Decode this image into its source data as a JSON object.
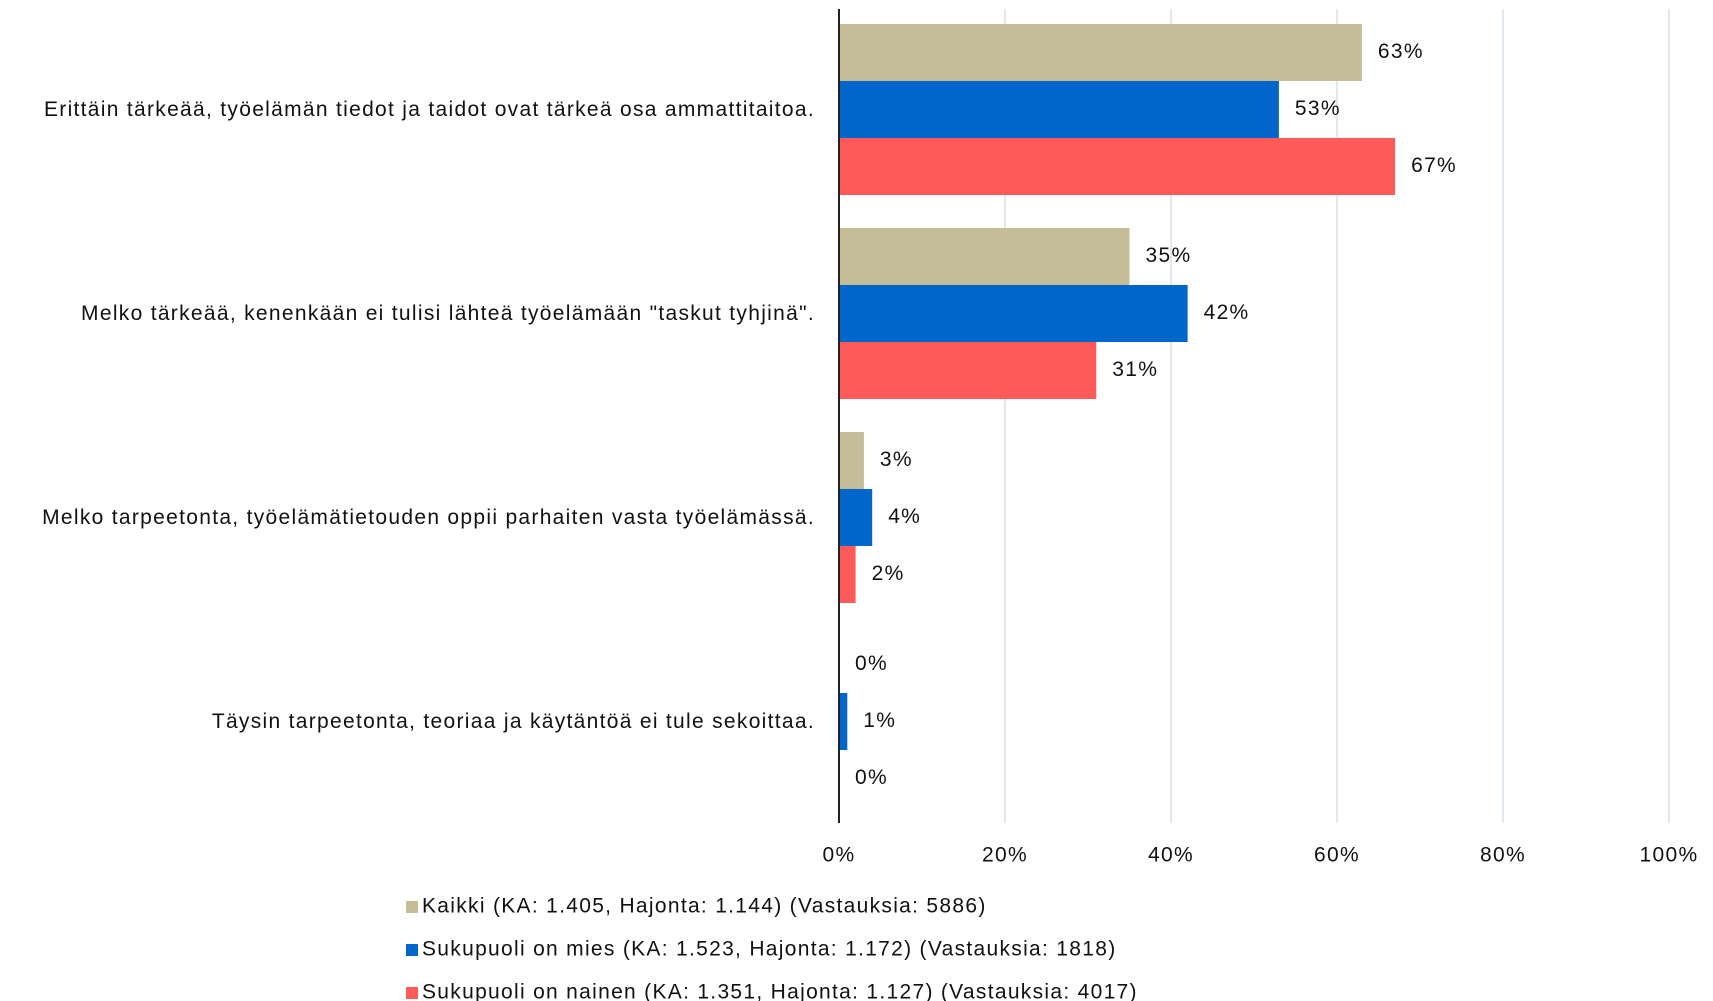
{
  "chart_data": {
    "type": "hbar",
    "categories": [
      "Erittäin tärkeää, työelämän tiedot ja taidot ovat tärkeä osa ammattitaitoa.",
      "Melko tärkeää, kenenkään ei tulisi lähteä työelämään \"taskut tyhjinä\".",
      "Melko tarpeetonta, työelämätietouden oppii parhaiten vasta työelämässä.",
      "Täysin tarpeetonta, teoriaa ja käytäntöä ei tule sekoittaa."
    ],
    "series": [
      {
        "name": "Kaikki (KA: 1.405, Hajonta: 1.144) (Vastauksia: 5886)",
        "color": "#c4bd97",
        "values": [
          63,
          35,
          3,
          0
        ],
        "value_labels": [
          "63%",
          "35%",
          "3%",
          "0%"
        ]
      },
      {
        "name": "Sukupuoli on mies (KA: 1.523, Hajonta: 1.172) (Vastauksia: 1818)",
        "color": "#0066cc",
        "values": [
          53,
          42,
          4,
          1
        ],
        "value_labels": [
          "53%",
          "42%",
          "4%",
          "1%"
        ]
      },
      {
        "name": "Sukupuoli on nainen (KA: 1.351, Hajonta: 1.127) (Vastauksia: 4017)",
        "color": "#ff5a5a",
        "values": [
          67,
          31,
          2,
          0
        ],
        "value_labels": [
          "67%",
          "31%",
          "2%",
          "0%"
        ]
      }
    ],
    "xlim": [
      0,
      100
    ],
    "xticks": [
      {
        "value": 0,
        "label": "0%"
      },
      {
        "value": 20,
        "label": "20%"
      },
      {
        "value": 40,
        "label": "40%"
      },
      {
        "value": 60,
        "label": "60%"
      },
      {
        "value": 80,
        "label": "80%"
      },
      {
        "value": 100,
        "label": "100%"
      }
    ],
    "grid": true,
    "legend": "bottom"
  }
}
